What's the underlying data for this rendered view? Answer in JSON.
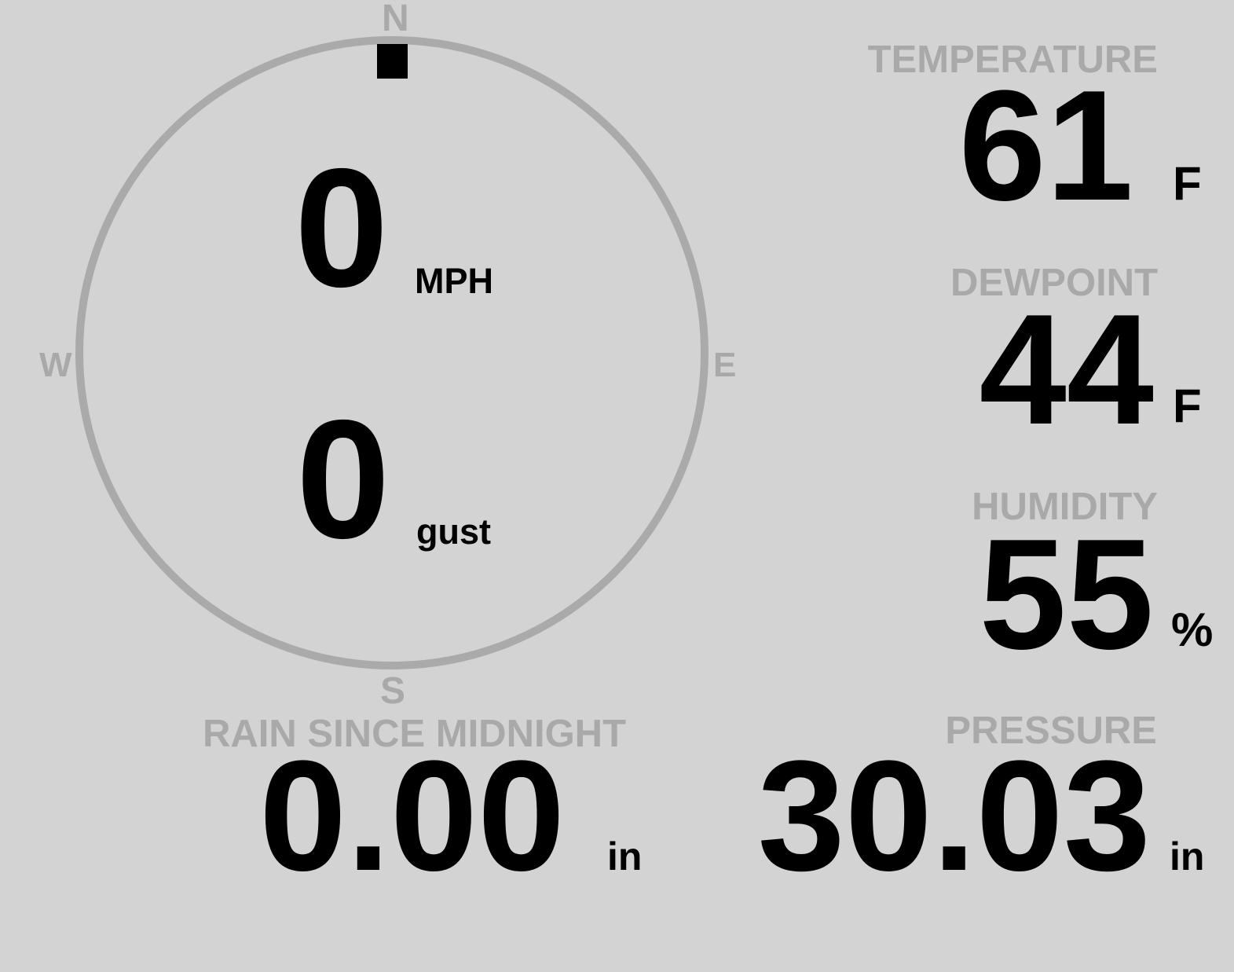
{
  "wind": {
    "speed": "0",
    "speed_unit": "MPH",
    "gust": "0",
    "gust_unit": "gust",
    "direction_deg": 0,
    "compass": {
      "n": "N",
      "e": "E",
      "s": "S",
      "w": "W"
    },
    "ring_color": "#aaaaaa",
    "marker_color": "#000000"
  },
  "temperature": {
    "label": "TEMPERATURE",
    "value": "61",
    "unit": "F"
  },
  "dewpoint": {
    "label": "DEWPOINT",
    "value": "44",
    "unit": "F"
  },
  "humidity": {
    "label": "HUMIDITY",
    "value": "55",
    "unit": "%"
  },
  "rain": {
    "label": "RAIN SINCE MIDNIGHT",
    "value": "0.00",
    "unit": "in"
  },
  "pressure": {
    "label": "PRESSURE",
    "value": "30.03",
    "unit": "in"
  },
  "colors": {
    "background": "#d3d3d3",
    "label": "#a9a9a9",
    "value": "#000000"
  }
}
